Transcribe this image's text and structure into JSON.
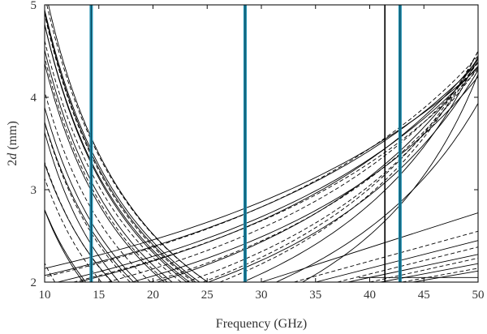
{
  "chart_data": {
    "type": "line",
    "title": "",
    "xlabel": "Frequency (GHz)",
    "ylabel_prefix": "2",
    "ylabel_var": "d",
    "ylabel_suffix": " (mm)",
    "xlim": [
      10,
      50
    ],
    "ylim": [
      2,
      5
    ],
    "xticks": [
      "10",
      "15",
      "20",
      "25",
      "30",
      "35",
      "40",
      "45",
      "50"
    ],
    "yticks": [
      "2",
      "3",
      "4",
      "5"
    ],
    "grid": false,
    "vertical_markers": {
      "color": "#1f8fb0",
      "x": [
        14.3,
        28.5,
        42.8
      ]
    },
    "reference_line_x": 41.4,
    "solid_hyperbolas_falling": [
      {
        "a": 17.35,
        "b": 0.4
      },
      {
        "a": 25.38,
        "b": 0.87
      },
      {
        "a": 27.0,
        "b": 0.3
      },
      {
        "a": 30.8,
        "b": 1.5
      },
      {
        "a": 32.0,
        "b": 0.25
      },
      {
        "a": 35.73,
        "b": 0.82
      },
      {
        "a": 35.44,
        "b": 0.5
      },
      {
        "a": 40.78,
        "b": 0.66
      },
      {
        "a": 42.27,
        "b": 0.63
      },
      {
        "a": 45.92,
        "b": 0.41
      },
      {
        "a": 45.0,
        "b": 0.6
      },
      {
        "a": 48.0,
        "b": 0.3
      },
      {
        "a": 47.0,
        "b": 0.45
      },
      {
        "a": 49.0,
        "b": 0.55
      }
    ],
    "dashed_hyperbolas_falling": [
      {
        "a": 20.27,
        "b": 0.81
      },
      {
        "a": 29.17,
        "b": 0.66
      },
      {
        "a": 31.5,
        "b": 0.45
      },
      {
        "a": 34.08,
        "b": 0.85
      },
      {
        "a": 38.58,
        "b": 0.5
      },
      {
        "a": 41.25,
        "b": 0.69
      },
      {
        "a": 44.5,
        "b": 0.35
      },
      {
        "a": 46.5,
        "b": 0.5
      },
      {
        "a": 49.5,
        "b": 0.3
      }
    ],
    "solid_hyperbolas_rising": [
      {
        "a": 68.04,
        "b": 0.4
      },
      {
        "a": 87.8,
        "b": 0.12
      },
      {
        "a": 84.2,
        "b": 1.21
      },
      {
        "a": 103.6,
        "b": 0.5
      },
      {
        "a": 120.1,
        "b": 0.19
      },
      {
        "a": 134.8,
        "b": 0.88
      },
      {
        "a": 150.0,
        "b": 0.3
      },
      {
        "a": 160.0,
        "b": 0.6
      },
      {
        "a": 175.0,
        "b": 0.5
      },
      {
        "a": 190.0,
        "b": 0.8
      }
    ],
    "dashed_hyperbolas_rising": [
      {
        "a": 95.3,
        "b": 0.0
      },
      {
        "a": 101.6,
        "b": 0.0
      },
      {
        "a": 110.0,
        "b": 0.25
      },
      {
        "a": 125.0,
        "b": 0.5
      },
      {
        "a": 140.0,
        "b": 0.4
      },
      {
        "a": 155.0,
        "b": 0.7
      },
      {
        "a": 170.0,
        "b": 0.2
      }
    ],
    "solid_lines": [
      {
        "x": [
          30,
          50
        ],
        "y": [
          2.0,
          2.75
        ]
      },
      {
        "x": [
          35,
          50
        ],
        "y": [
          2.0,
          2.45
        ]
      },
      {
        "x": [
          38,
          50
        ],
        "y": [
          2.0,
          2.3
        ]
      },
      {
        "x": [
          41,
          50
        ],
        "y": [
          2.0,
          2.2
        ]
      },
      {
        "x": [
          44,
          50
        ],
        "y": [
          2.0,
          2.12
        ]
      },
      {
        "x": [
          39,
          50
        ],
        "y": [
          2.05,
          2.05
        ]
      }
    ],
    "dashed_lines": [
      {
        "x": [
          33,
          50
        ],
        "y": [
          2.0,
          2.55
        ]
      },
      {
        "x": [
          37,
          50
        ],
        "y": [
          2.0,
          2.38
        ]
      },
      {
        "x": [
          40,
          50
        ],
        "y": [
          2.0,
          2.26
        ]
      },
      {
        "x": [
          43,
          50
        ],
        "y": [
          2.0,
          2.15
        ]
      }
    ]
  }
}
